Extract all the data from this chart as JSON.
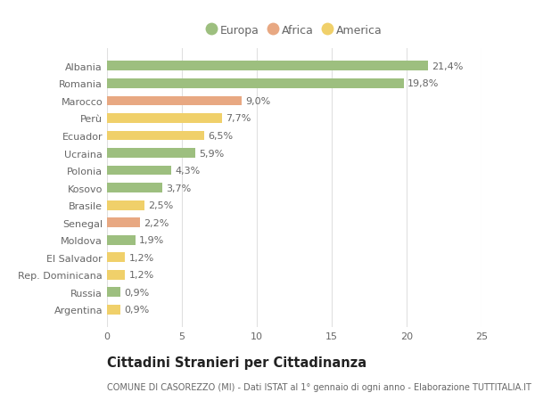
{
  "countries": [
    "Albania",
    "Romania",
    "Marocco",
    "Perù",
    "Ecuador",
    "Ucraina",
    "Polonia",
    "Kosovo",
    "Brasile",
    "Senegal",
    "Moldova",
    "El Salvador",
    "Rep. Dominicana",
    "Russia",
    "Argentina"
  ],
  "values": [
    21.4,
    19.8,
    9.0,
    7.7,
    6.5,
    5.9,
    4.3,
    3.7,
    2.5,
    2.2,
    1.9,
    1.2,
    1.2,
    0.9,
    0.9
  ],
  "labels": [
    "21,4%",
    "19,8%",
    "9,0%",
    "7,7%",
    "6,5%",
    "5,9%",
    "4,3%",
    "3,7%",
    "2,5%",
    "2,2%",
    "1,9%",
    "1,2%",
    "1,2%",
    "0,9%",
    "0,9%"
  ],
  "continents": [
    "Europa",
    "Europa",
    "Africa",
    "America",
    "America",
    "Europa",
    "Europa",
    "Europa",
    "America",
    "Africa",
    "Europa",
    "America",
    "America",
    "Europa",
    "America"
  ],
  "colors": {
    "Europa": "#9dbf7f",
    "Africa": "#e8a882",
    "America": "#f0d06a"
  },
  "legend_order": [
    "Europa",
    "Africa",
    "America"
  ],
  "legend_colors": [
    "#9dbf7f",
    "#e8a882",
    "#f0d06a"
  ],
  "legend_labels": [
    "Europa",
    "Africa",
    "America"
  ],
  "title": "Cittadini Stranieri per Cittadinanza",
  "subtitle": "COMUNE DI CASOREZZO (MI) - Dati ISTAT al 1° gennaio di ogni anno - Elaborazione TUTTITALIA.IT",
  "xlim": [
    0,
    25
  ],
  "xticks": [
    0,
    5,
    10,
    15,
    20,
    25
  ],
  "background_color": "#ffffff",
  "grid_color": "#e0e0e0",
  "bar_height": 0.55,
  "label_fontsize": 8.0,
  "tick_fontsize": 8.0,
  "title_fontsize": 10.5,
  "subtitle_fontsize": 7.0,
  "legend_fontsize": 9.0,
  "text_color": "#666666",
  "title_color": "#222222"
}
